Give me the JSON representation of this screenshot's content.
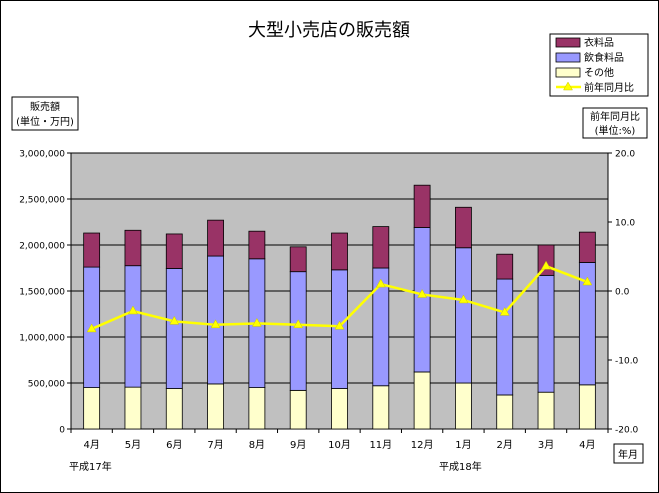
{
  "chart_data": {
    "type": "bar",
    "title": "大型小売店の販売額",
    "categories": [
      "4月",
      "5月",
      "6月",
      "7月",
      "8月",
      "9月",
      "10月",
      "11月",
      "12月",
      "1月",
      "2月",
      "3月",
      "4月"
    ],
    "series": [
      {
        "name": "その他",
        "color": "#ffffcc",
        "values": [
          450000,
          455000,
          440000,
          490000,
          450000,
          420000,
          440000,
          470000,
          620000,
          500000,
          370000,
          400000,
          480000
        ]
      },
      {
        "name": "飲食料品",
        "color": "#9999ff",
        "values": [
          1310000,
          1320000,
          1305000,
          1390000,
          1400000,
          1290000,
          1290000,
          1280000,
          1570000,
          1470000,
          1260000,
          1270000,
          1330000
        ]
      },
      {
        "name": "衣料品",
        "color": "#993366",
        "values": [
          370000,
          385000,
          375000,
          390000,
          300000,
          270000,
          400000,
          450000,
          460000,
          440000,
          270000,
          330000,
          330000
        ]
      }
    ],
    "line_series": {
      "name": "前年同月比",
      "color": "#ffff00",
      "values": [
        -5.5,
        -2.9,
        -4.4,
        -4.9,
        -4.7,
        -4.9,
        -5.1,
        1.0,
        -0.5,
        -1.3,
        -3.1,
        3.6,
        1.3
      ]
    },
    "ylim": [
      0,
      3000000
    ],
    "yticks": [
      "0",
      "500,000",
      "1,000,000",
      "1,500,000",
      "2,000,000",
      "2,500,000",
      "3,000,000"
    ],
    "ylabel_lines": [
      "販売額",
      "(単位・万円)"
    ],
    "y2lim": [
      -20,
      20
    ],
    "y2ticks": [
      "-20.0",
      "-10.0",
      "0.0",
      "10.0",
      "20.0"
    ],
    "y2label_lines": [
      "前年同月比",
      "(単位:%)"
    ],
    "xlabel": "年月",
    "era_labels": [
      "平成17年",
      "平成18年"
    ],
    "legend_position": "top-right",
    "legend_order": [
      "衣料品",
      "飲食料品",
      "その他",
      "前年同月比"
    ],
    "plot_bg": "#c0c0c0",
    "grid": true
  }
}
